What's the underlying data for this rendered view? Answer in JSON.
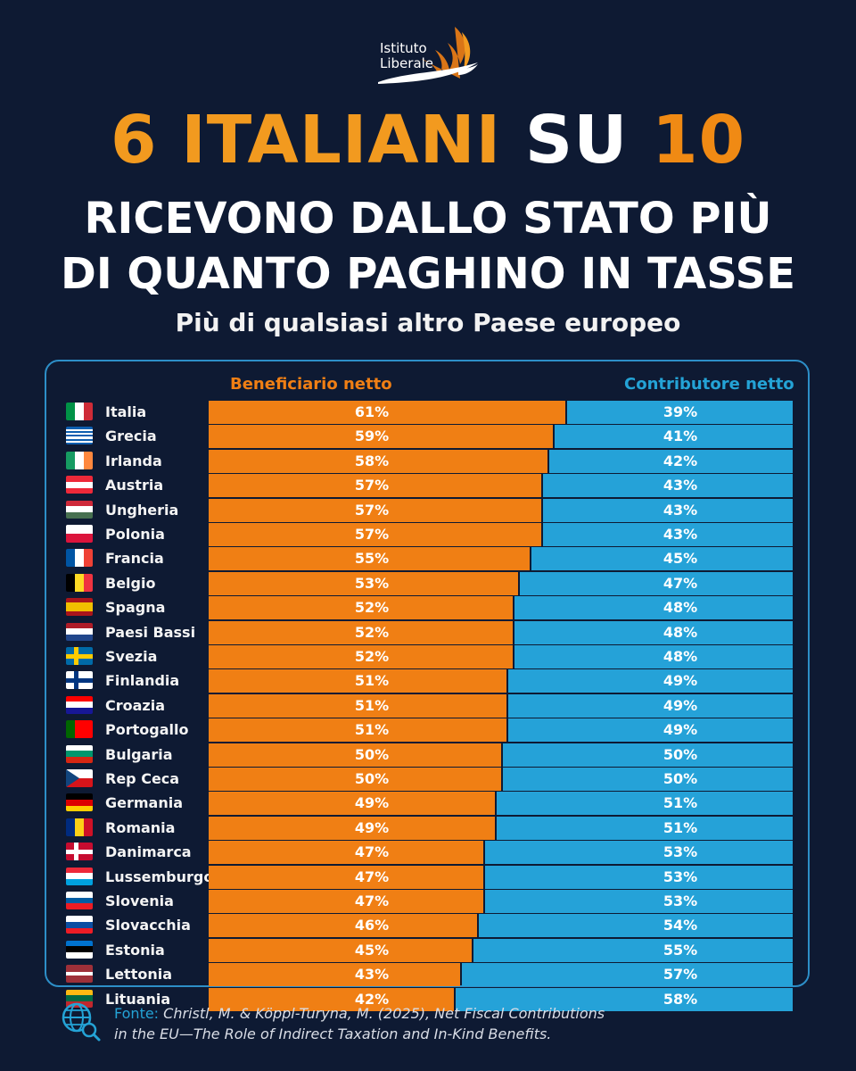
{
  "logo": {
    "line1": "Istituto",
    "line2": "Liberale"
  },
  "headline": {
    "part1": "6 ITALIANI",
    "part2": "SU",
    "part3": "10",
    "line2": "RICEVONO DALLO STATO PIÙ",
    "line3": "DI QUANTO PAGHINO IN TASSE"
  },
  "subheadline": "Più di qualsiasi altro Paese europeo",
  "colors": {
    "beneficiario": "#f07f14",
    "contributore": "#25a2d8",
    "background": "#0e1a33"
  },
  "chart_data": {
    "type": "bar",
    "orientation": "horizontal-stacked-100",
    "series": [
      {
        "name": "Beneficiario netto",
        "color": "#f07f14"
      },
      {
        "name": "Contributore netto",
        "color": "#25a2d8"
      }
    ],
    "rows": [
      {
        "country": "Italia",
        "flag": "italy",
        "beneficiario": 61,
        "contributore": 39
      },
      {
        "country": "Grecia",
        "flag": "greece",
        "beneficiario": 59,
        "contributore": 41
      },
      {
        "country": "Irlanda",
        "flag": "ireland",
        "beneficiario": 58,
        "contributore": 42
      },
      {
        "country": "Austria",
        "flag": "austria",
        "beneficiario": 57,
        "contributore": 43
      },
      {
        "country": "Ungheria",
        "flag": "hungary",
        "beneficiario": 57,
        "contributore": 43
      },
      {
        "country": "Polonia",
        "flag": "poland",
        "beneficiario": 57,
        "contributore": 43
      },
      {
        "country": "Francia",
        "flag": "france",
        "beneficiario": 55,
        "contributore": 45
      },
      {
        "country": "Belgio",
        "flag": "belgium",
        "beneficiario": 53,
        "contributore": 47
      },
      {
        "country": "Spagna",
        "flag": "spain",
        "beneficiario": 52,
        "contributore": 48
      },
      {
        "country": "Paesi Bassi",
        "flag": "netherlands",
        "beneficiario": 52,
        "contributore": 48
      },
      {
        "country": "Svezia",
        "flag": "sweden",
        "beneficiario": 52,
        "contributore": 48
      },
      {
        "country": "Finlandia",
        "flag": "finland",
        "beneficiario": 51,
        "contributore": 49
      },
      {
        "country": "Croazia",
        "flag": "croatia",
        "beneficiario": 51,
        "contributore": 49
      },
      {
        "country": "Portogallo",
        "flag": "portugal",
        "beneficiario": 51,
        "contributore": 49
      },
      {
        "country": "Bulgaria",
        "flag": "bulgaria",
        "beneficiario": 50,
        "contributore": 50
      },
      {
        "country": "Rep Ceca",
        "flag": "czechia",
        "beneficiario": 50,
        "contributore": 50
      },
      {
        "country": "Germania",
        "flag": "germany",
        "beneficiario": 49,
        "contributore": 51
      },
      {
        "country": "Romania",
        "flag": "romania",
        "beneficiario": 49,
        "contributore": 51
      },
      {
        "country": "Danimarca",
        "flag": "denmark",
        "beneficiario": 47,
        "contributore": 53
      },
      {
        "country": "Lussemburgo",
        "flag": "luxembourg",
        "beneficiario": 47,
        "contributore": 53
      },
      {
        "country": "Slovenia",
        "flag": "slovenia",
        "beneficiario": 47,
        "contributore": 53
      },
      {
        "country": "Slovacchia",
        "flag": "slovakia",
        "beneficiario": 46,
        "contributore": 54
      },
      {
        "country": "Estonia",
        "flag": "estonia",
        "beneficiario": 45,
        "contributore": 55
      },
      {
        "country": "Lettonia",
        "flag": "latvia",
        "beneficiario": 43,
        "contributore": 57
      },
      {
        "country": "Lituania",
        "flag": "lithuania",
        "beneficiario": 42,
        "contributore": 58
      }
    ],
    "value_suffix": "%"
  },
  "source": {
    "label": "Fonte:",
    "line1": "Christl, M. & Köppl-Turyna, M. (2025), Net Fiscal Contributions",
    "line2": "in the EU—The Role of Indirect Taxation and In-Kind Benefits.",
    "icon": "globe-search-icon"
  }
}
